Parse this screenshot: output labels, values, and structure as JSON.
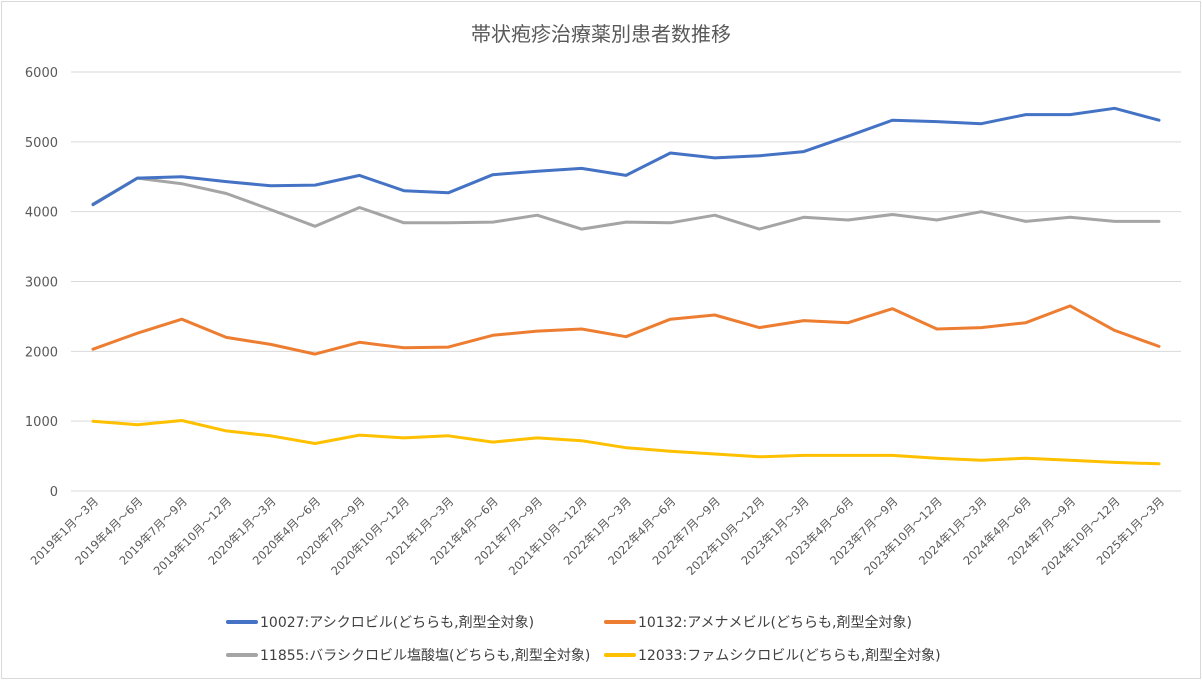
{
  "chart_data": {
    "type": "line",
    "title": "帯状疱疹治療薬別患者数推移",
    "xlabel": "",
    "ylabel": "",
    "ylim": [
      0,
      6000
    ],
    "yticks": [
      "0",
      "1000",
      "2000",
      "3000",
      "4000",
      "5000",
      "6000"
    ],
    "grid": true,
    "legend_position": "bottom",
    "categories": [
      "2019年1月～3月",
      "2019年4月～6月",
      "2019年7月～9月",
      "2019年10月～12月",
      "2020年1月～3月",
      "2020年4月～6月",
      "2020年7月～9月",
      "2020年10月～12月",
      "2021年1月～3月",
      "2021年4月～6月",
      "2021年7月～9月",
      "2021年10月～12月",
      "2022年1月～3月",
      "2022年4月～6月",
      "2022年7月～9月",
      "2022年10月～12月",
      "2023年1月～3月",
      "2023年4月～6月",
      "2023年7月～9月",
      "2023年10月～12月",
      "2024年1月～3月",
      "2024年4月～6月",
      "2024年7月～9月",
      "2024年10月～12月",
      "2025年1月～3月"
    ],
    "series": [
      {
        "name": "10027:アシクロビル(どちらも,剤型全対象)",
        "color": "#4472c4",
        "values": [
          4100,
          4480,
          4500,
          4430,
          4370,
          4380,
          4520,
          4300,
          4270,
          4530,
          4580,
          4620,
          4520,
          4840,
          4770,
          4800,
          4860,
          5080,
          5310,
          5290,
          5260,
          5390,
          5390,
          5480,
          5310
        ]
      },
      {
        "name": "10132:アメナメビル(どちらも,剤型全対象)",
        "color": "#ed7d31",
        "values": [
          2030,
          2260,
          2460,
          2200,
          2100,
          1960,
          2130,
          2050,
          2060,
          2230,
          2290,
          2320,
          2210,
          2460,
          2520,
          2340,
          2440,
          2410,
          2610,
          2320,
          2340,
          2410,
          2650,
          2300,
          2070
        ]
      },
      {
        "name": "11855:バラシクロビル塩酸塩(どちらも,剤型全対象)",
        "color": "#a5a5a5",
        "values": [
          4110,
          4480,
          4400,
          4260,
          4030,
          3790,
          4060,
          3840,
          3840,
          3850,
          3950,
          3750,
          3850,
          3840,
          3950,
          3750,
          3920,
          3880,
          3960,
          3880,
          4000,
          3860,
          3920,
          3860,
          3860
        ]
      },
      {
        "name": "12033:ファムシクロビル(どちらも,剤型全対象)",
        "color": "#ffc000",
        "values": [
          1000,
          950,
          1010,
          860,
          790,
          680,
          800,
          760,
          790,
          700,
          760,
          720,
          620,
          570,
          530,
          490,
          510,
          510,
          510,
          470,
          440,
          470,
          440,
          410,
          390
        ]
      }
    ]
  }
}
